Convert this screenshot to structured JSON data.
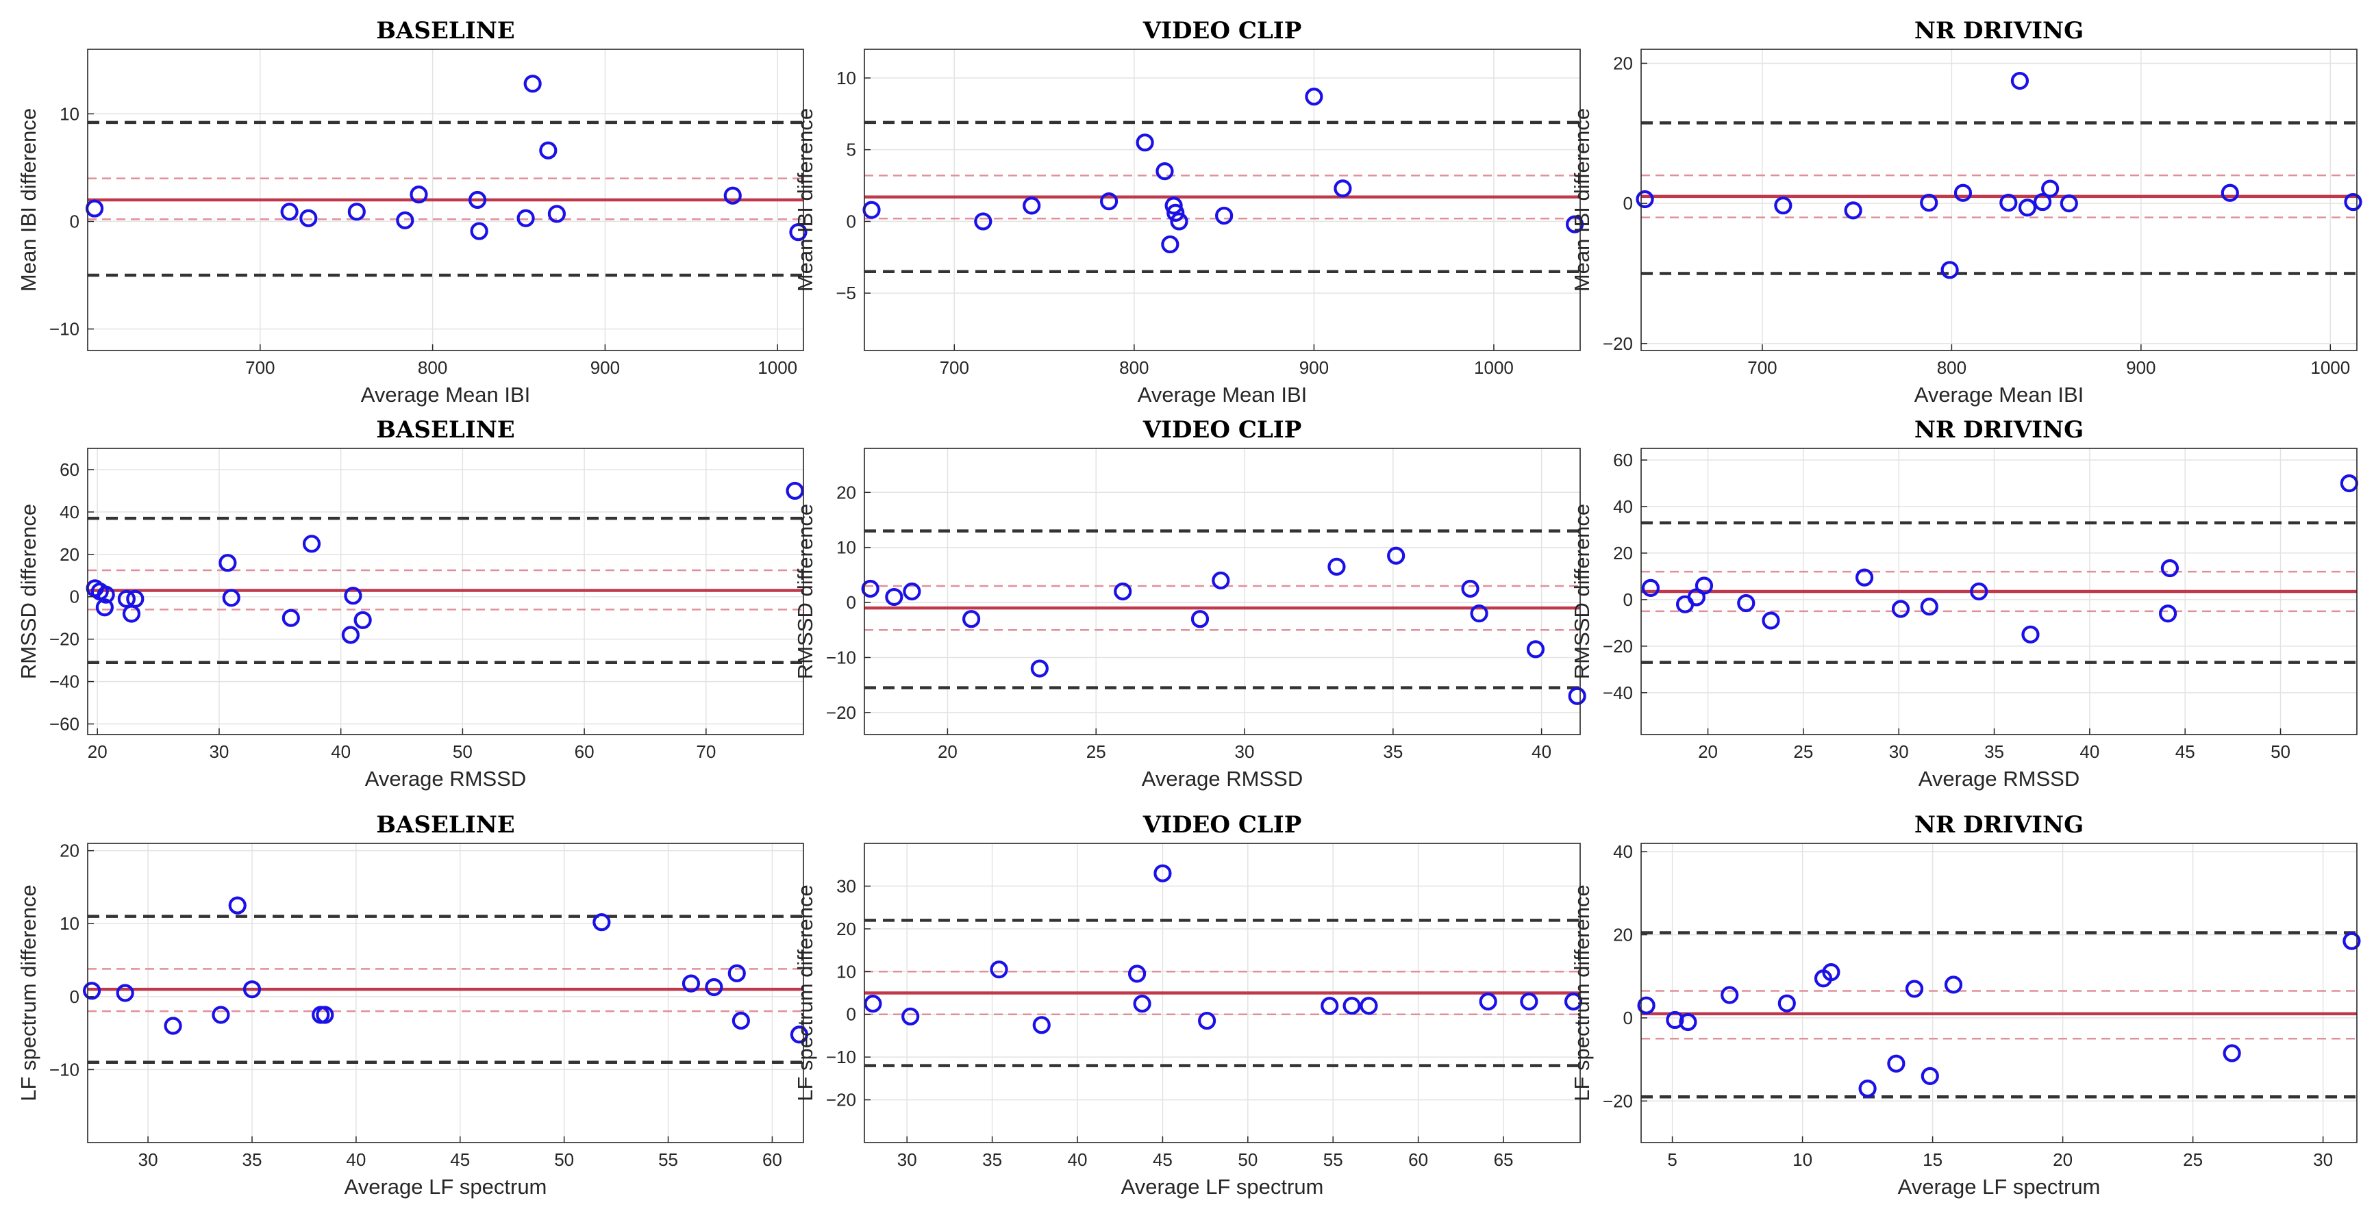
{
  "colors": {
    "marker": "#1a10e8",
    "bias_line": "#c0394b",
    "ci_line": "#e0909a",
    "loa_line": "#333333",
    "grid": "#e3e3e3",
    "axes": "#262626"
  },
  "chart_data": [
    {
      "type": "scatter",
      "title": "BASELINE",
      "xlabel": "Average Mean IBI",
      "ylabel": "Mean IBI difference",
      "xlim": [
        600,
        1015
      ],
      "ylim": [
        -12,
        16
      ],
      "xticks": [
        700,
        800,
        900,
        1000
      ],
      "xtick_labels": [
        "700",
        "800",
        "900",
        "1000"
      ],
      "yticks": [
        -10,
        0,
        10
      ],
      "ytick_labels": [
        "−10",
        "0",
        "10"
      ],
      "bias": 2.0,
      "ci": [
        0.2,
        4.0
      ],
      "loa": [
        -5.0,
        9.2
      ],
      "points": [
        [
          604,
          1.2
        ],
        [
          717,
          0.9
        ],
        [
          728,
          0.3
        ],
        [
          756,
          0.9
        ],
        [
          784,
          0.1
        ],
        [
          792,
          2.5
        ],
        [
          826,
          2.0
        ],
        [
          827,
          -0.9
        ],
        [
          854,
          0.3
        ],
        [
          858,
          12.8
        ],
        [
          867,
          6.6
        ],
        [
          872,
          0.7
        ],
        [
          974,
          2.4
        ],
        [
          1012,
          -1.0
        ]
      ]
    },
    {
      "type": "scatter",
      "title": "VIDEO CLIP",
      "xlabel": "Average Mean IBI",
      "ylabel": "Mean IBI difference",
      "xlim": [
        650,
        1048
      ],
      "ylim": [
        -9,
        12
      ],
      "xticks": [
        700,
        800,
        900,
        1000
      ],
      "xtick_labels": [
        "700",
        "800",
        "900",
        "1000"
      ],
      "yticks": [
        -5,
        0,
        5,
        10
      ],
      "ytick_labels": [
        "−5",
        "0",
        "5",
        "10"
      ],
      "bias": 1.7,
      "ci": [
        0.2,
        3.2
      ],
      "loa": [
        -3.5,
        6.9
      ],
      "points": [
        [
          654,
          0.8
        ],
        [
          716,
          0.0
        ],
        [
          743,
          1.1
        ],
        [
          786,
          1.4
        ],
        [
          806,
          5.5
        ],
        [
          817,
          3.5
        ],
        [
          820,
          -1.6
        ],
        [
          822,
          1.1
        ],
        [
          823,
          0.6
        ],
        [
          825,
          0.0
        ],
        [
          850,
          0.4
        ],
        [
          900,
          8.7
        ],
        [
          916,
          2.3
        ],
        [
          1045,
          -0.2
        ]
      ]
    },
    {
      "type": "scatter",
      "title": "NR DRIVING",
      "xlabel": "Average Mean IBI",
      "ylabel": "Mean IBI difference",
      "xlim": [
        636,
        1014
      ],
      "ylim": [
        -21,
        22
      ],
      "xticks": [
        700,
        800,
        900,
        1000
      ],
      "xtick_labels": [
        "700",
        "800",
        "900",
        "1000"
      ],
      "yticks": [
        -20,
        0,
        20
      ],
      "ytick_labels": [
        "−20",
        "0",
        "20"
      ],
      "bias": 1.0,
      "ci": [
        -2.0,
        4.0
      ],
      "loa": [
        -10.0,
        11.5
      ],
      "points": [
        [
          638,
          0.6
        ],
        [
          711,
          -0.3
        ],
        [
          748,
          -1.0
        ],
        [
          788,
          0.1
        ],
        [
          799,
          -9.5
        ],
        [
          806,
          1.5
        ],
        [
          830,
          0.1
        ],
        [
          836,
          17.5
        ],
        [
          840,
          -0.6
        ],
        [
          848,
          0.2
        ],
        [
          852,
          2.1
        ],
        [
          862,
          0.0
        ],
        [
          947,
          1.5
        ],
        [
          1012,
          0.2
        ]
      ]
    },
    {
      "type": "scatter",
      "title": "BASELINE",
      "xlabel": "Average RMSSD",
      "ylabel": "RMSSD difference",
      "xlim": [
        19.2,
        78
      ],
      "ylim": [
        -65,
        70
      ],
      "xticks": [
        20,
        30,
        40,
        50,
        60,
        70
      ],
      "xtick_labels": [
        "20",
        "30",
        "40",
        "50",
        "60",
        "70"
      ],
      "yticks": [
        -60,
        -40,
        -20,
        0,
        20,
        40,
        60
      ],
      "ytick_labels": [
        "−60",
        "−40",
        "−20",
        "0",
        "20",
        "40",
        "60"
      ],
      "bias": 3.0,
      "ci": [
        -6.0,
        12.5
      ],
      "loa": [
        -31.0,
        37.0
      ],
      "points": [
        [
          19.8,
          4.0
        ],
        [
          20.2,
          2.5
        ],
        [
          20.6,
          -5.0
        ],
        [
          20.7,
          1.0
        ],
        [
          22.4,
          -1.0
        ],
        [
          22.8,
          -8.0
        ],
        [
          23.1,
          -1.0
        ],
        [
          30.7,
          16.0
        ],
        [
          31.0,
          -0.5
        ],
        [
          35.9,
          -10.0
        ],
        [
          37.6,
          25.0
        ],
        [
          40.8,
          -18.0
        ],
        [
          41.0,
          0.5
        ],
        [
          41.8,
          -11.0
        ],
        [
          77.3,
          50.0
        ]
      ]
    },
    {
      "type": "scatter",
      "title": "VIDEO CLIP",
      "xlabel": "Average RMSSD",
      "ylabel": "RMSSD difference",
      "xlim": [
        17.2,
        41.3
      ],
      "ylim": [
        -24,
        28
      ],
      "xticks": [
        20,
        25,
        30,
        35,
        40
      ],
      "xtick_labels": [
        "20",
        "25",
        "30",
        "35",
        "40"
      ],
      "yticks": [
        -20,
        -10,
        0,
        10,
        20
      ],
      "ytick_labels": [
        "−20",
        "−10",
        "0",
        "10",
        "20"
      ],
      "bias": -1.0,
      "ci": [
        -5.0,
        3.0
      ],
      "loa": [
        -15.5,
        13.0
      ],
      "points": [
        [
          17.4,
          2.5
        ],
        [
          18.2,
          1.0
        ],
        [
          18.8,
          2.0
        ],
        [
          20.8,
          -3.0
        ],
        [
          23.1,
          -12.0
        ],
        [
          25.9,
          2.0
        ],
        [
          28.5,
          -3.0
        ],
        [
          29.2,
          4.0
        ],
        [
          33.1,
          6.5
        ],
        [
          35.1,
          8.5
        ],
        [
          37.6,
          2.5
        ],
        [
          37.9,
          -2.0
        ],
        [
          39.8,
          -8.5
        ],
        [
          41.2,
          -17.0
        ]
      ]
    },
    {
      "type": "scatter",
      "title": "NR DRIVING",
      "xlabel": "Average RMSSD",
      "ylabel": "RMSSD difference",
      "xlim": [
        16.5,
        54
      ],
      "ylim": [
        -58,
        65
      ],
      "xticks": [
        20,
        25,
        30,
        35,
        40,
        45,
        50
      ],
      "xtick_labels": [
        "20",
        "25",
        "30",
        "35",
        "40",
        "45",
        "50"
      ],
      "yticks": [
        -40,
        -20,
        0,
        20,
        40,
        60
      ],
      "ytick_labels": [
        "−40",
        "−20",
        "0",
        "20",
        "40",
        "60"
      ],
      "bias": 3.5,
      "ci": [
        -5.0,
        12.0
      ],
      "loa": [
        -27.0,
        33.0
      ],
      "points": [
        [
          17.0,
          5.0
        ],
        [
          18.8,
          -2.0
        ],
        [
          19.4,
          1.0
        ],
        [
          19.8,
          6.0
        ],
        [
          22.0,
          -1.5
        ],
        [
          23.3,
          -9.0
        ],
        [
          28.2,
          9.5
        ],
        [
          30.1,
          -4.0
        ],
        [
          31.6,
          -3.0
        ],
        [
          34.2,
          3.5
        ],
        [
          36.9,
          -15.0
        ],
        [
          44.2,
          13.5
        ],
        [
          44.1,
          -6.0
        ],
        [
          53.6,
          50.0
        ]
      ]
    },
    {
      "type": "scatter",
      "title": "BASELINE",
      "xlabel": "Average LF spectrum",
      "ylabel": "LF spectrum difference",
      "xlim": [
        27.1,
        61.5
      ],
      "ylim": [
        -20,
        21
      ],
      "xticks": [
        30,
        35,
        40,
        45,
        50,
        55,
        60
      ],
      "xtick_labels": [
        "30",
        "35",
        "40",
        "45",
        "50",
        "55",
        "60"
      ],
      "yticks": [
        -10,
        0,
        10,
        20
      ],
      "ytick_labels": [
        "−10",
        "0",
        "10",
        "20"
      ],
      "bias": 1.0,
      "ci": [
        -2.0,
        3.8
      ],
      "loa": [
        -9.0,
        11.0
      ],
      "points": [
        [
          27.3,
          0.8
        ],
        [
          28.9,
          0.5
        ],
        [
          31.2,
          -4.0
        ],
        [
          33.5,
          -2.5
        ],
        [
          34.3,
          12.5
        ],
        [
          35.0,
          1.0
        ],
        [
          38.3,
          -2.5
        ],
        [
          38.5,
          -2.5
        ],
        [
          51.8,
          10.2
        ],
        [
          56.1,
          1.8
        ],
        [
          57.2,
          1.3
        ],
        [
          58.3,
          3.2
        ],
        [
          58.5,
          -3.3
        ],
        [
          61.3,
          -5.2
        ]
      ]
    },
    {
      "type": "scatter",
      "title": "VIDEO CLIP",
      "xlabel": "Average LF spectrum",
      "ylabel": "LF spectrum difference",
      "xlim": [
        27.5,
        69.5
      ],
      "ylim": [
        -30,
        40
      ],
      "xticks": [
        30,
        35,
        40,
        45,
        50,
        55,
        60,
        65
      ],
      "xtick_labels": [
        "30",
        "35",
        "40",
        "45",
        "50",
        "55",
        "60",
        "65"
      ],
      "yticks": [
        -20,
        -10,
        0,
        10,
        20,
        30
      ],
      "ytick_labels": [
        "−20",
        "−10",
        "0",
        "10",
        "20",
        "30"
      ],
      "bias": 5.0,
      "ci": [
        0.0,
        10.0
      ],
      "loa": [
        -12.0,
        22.0
      ],
      "points": [
        [
          28.0,
          2.5
        ],
        [
          30.2,
          -0.5
        ],
        [
          35.4,
          10.5
        ],
        [
          37.9,
          -2.5
        ],
        [
          43.5,
          9.5
        ],
        [
          43.8,
          2.5
        ],
        [
          45.0,
          33.0
        ],
        [
          47.6,
          -1.5
        ],
        [
          54.8,
          2.0
        ],
        [
          56.1,
          2.0
        ],
        [
          57.1,
          2.0
        ],
        [
          64.1,
          3.0
        ],
        [
          66.5,
          3.0
        ],
        [
          69.1,
          3.0
        ]
      ]
    },
    {
      "type": "scatter",
      "title": "NR DRIVING",
      "xlabel": "Average LF spectrum",
      "ylabel": "LF spectrum difference",
      "xlim": [
        3.8,
        31.3
      ],
      "ylim": [
        -30,
        42
      ],
      "xticks": [
        5,
        10,
        15,
        20,
        25,
        30
      ],
      "xtick_labels": [
        "5",
        "10",
        "15",
        "20",
        "25",
        "30"
      ],
      "yticks": [
        -20,
        0,
        20,
        40
      ],
      "ytick_labels": [
        "−20",
        "0",
        "20",
        "40"
      ],
      "bias": 1.0,
      "ci": [
        -5.0,
        6.5
      ],
      "loa": [
        -19.0,
        20.5
      ],
      "points": [
        [
          4.0,
          3.0
        ],
        [
          5.1,
          -0.5
        ],
        [
          5.6,
          -1.0
        ],
        [
          7.2,
          5.5
        ],
        [
          9.4,
          3.5
        ],
        [
          10.8,
          9.5
        ],
        [
          11.1,
          11.0
        ],
        [
          12.5,
          -17.0
        ],
        [
          13.6,
          -11.0
        ],
        [
          14.3,
          7.0
        ],
        [
          14.9,
          -14.0
        ],
        [
          15.8,
          8.0
        ],
        [
          26.5,
          -8.5
        ],
        [
          31.1,
          18.5
        ]
      ]
    }
  ]
}
